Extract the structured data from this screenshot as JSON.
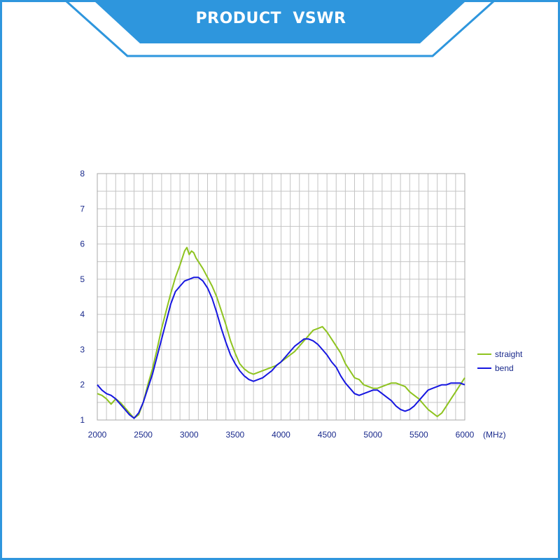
{
  "header": {
    "title": "PRODUCT  VSWR"
  },
  "colors": {
    "frame": "#2e96dd",
    "banner": "#2e96dd",
    "grid": "#c4c4c4",
    "tick_text": "#1a2a8c",
    "straight": "#8ec31f",
    "bend": "#1616e0"
  },
  "chart_data": {
    "type": "line",
    "title": "",
    "xlabel": "",
    "ylabel": "",
    "x_unit": "(MHz)",
    "xlim": [
      2000,
      6000
    ],
    "ylim": [
      1,
      8
    ],
    "x_ticks": [
      2000,
      2500,
      3000,
      3500,
      4000,
      4500,
      5000,
      5500,
      6000
    ],
    "y_ticks": [
      1,
      2,
      3,
      4,
      5,
      6,
      7,
      8
    ],
    "grid": true,
    "legend": "right",
    "series": [
      {
        "name": "straight",
        "color": "#8ec31f",
        "x": [
          2000,
          2050,
          2100,
          2150,
          2200,
          2250,
          2300,
          2350,
          2400,
          2450,
          2500,
          2550,
          2600,
          2650,
          2700,
          2750,
          2800,
          2850,
          2900,
          2950,
          2975,
          3000,
          3025,
          3050,
          3075,
          3100,
          3150,
          3200,
          3250,
          3300,
          3350,
          3400,
          3450,
          3500,
          3550,
          3600,
          3650,
          3700,
          3750,
          3800,
          3850,
          3900,
          3950,
          4000,
          4050,
          4100,
          4150,
          4200,
          4250,
          4300,
          4350,
          4400,
          4450,
          4500,
          4550,
          4600,
          4650,
          4700,
          4750,
          4800,
          4850,
          4900,
          4950,
          5000,
          5050,
          5100,
          5150,
          5200,
          5250,
          5300,
          5350,
          5400,
          5450,
          5500,
          5550,
          5600,
          5650,
          5700,
          5750,
          5800,
          5850,
          5900,
          5950,
          6000
        ],
        "values": [
          1.75,
          1.7,
          1.6,
          1.45,
          1.6,
          1.5,
          1.35,
          1.2,
          1.05,
          1.15,
          1.5,
          2.0,
          2.45,
          3.0,
          3.6,
          4.1,
          4.6,
          5.05,
          5.4,
          5.8,
          5.9,
          5.7,
          5.8,
          5.75,
          5.6,
          5.5,
          5.3,
          5.05,
          4.8,
          4.5,
          4.1,
          3.7,
          3.25,
          2.9,
          2.6,
          2.45,
          2.35,
          2.3,
          2.35,
          2.4,
          2.45,
          2.5,
          2.55,
          2.65,
          2.75,
          2.85,
          2.95,
          3.1,
          3.25,
          3.4,
          3.55,
          3.6,
          3.65,
          3.5,
          3.3,
          3.1,
          2.9,
          2.6,
          2.4,
          2.2,
          2.15,
          2.0,
          1.95,
          1.9,
          1.9,
          1.95,
          2.0,
          2.05,
          2.05,
          2.0,
          1.95,
          1.8,
          1.7,
          1.6,
          1.45,
          1.3,
          1.2,
          1.1,
          1.2,
          1.4,
          1.6,
          1.8,
          2.0,
          2.2
        ]
      },
      {
        "name": "bend",
        "color": "#1616e0",
        "x": [
          2000,
          2050,
          2100,
          2150,
          2200,
          2250,
          2300,
          2350,
          2400,
          2450,
          2500,
          2550,
          2600,
          2650,
          2700,
          2750,
          2800,
          2850,
          2900,
          2950,
          3000,
          3050,
          3100,
          3150,
          3200,
          3250,
          3300,
          3350,
          3400,
          3450,
          3500,
          3550,
          3600,
          3650,
          3700,
          3750,
          3800,
          3850,
          3900,
          3950,
          4000,
          4050,
          4100,
          4150,
          4200,
          4250,
          4300,
          4350,
          4400,
          4450,
          4500,
          4550,
          4600,
          4650,
          4700,
          4750,
          4800,
          4850,
          4900,
          4950,
          5000,
          5050,
          5100,
          5150,
          5200,
          5250,
          5300,
          5350,
          5400,
          5450,
          5500,
          5550,
          5600,
          5650,
          5700,
          5750,
          5800,
          5850,
          5900,
          5950,
          6000
        ],
        "values": [
          2.0,
          1.85,
          1.75,
          1.7,
          1.6,
          1.45,
          1.3,
          1.15,
          1.05,
          1.2,
          1.5,
          1.9,
          2.3,
          2.8,
          3.3,
          3.8,
          4.3,
          4.65,
          4.8,
          4.95,
          5.0,
          5.05,
          5.05,
          4.95,
          4.75,
          4.45,
          4.05,
          3.6,
          3.2,
          2.85,
          2.6,
          2.4,
          2.25,
          2.15,
          2.1,
          2.15,
          2.2,
          2.3,
          2.4,
          2.55,
          2.65,
          2.8,
          2.95,
          3.1,
          3.2,
          3.3,
          3.3,
          3.25,
          3.15,
          3.0,
          2.85,
          2.65,
          2.5,
          2.25,
          2.05,
          1.9,
          1.75,
          1.7,
          1.75,
          1.8,
          1.85,
          1.85,
          1.75,
          1.65,
          1.55,
          1.4,
          1.3,
          1.25,
          1.3,
          1.4,
          1.55,
          1.7,
          1.85,
          1.9,
          1.95,
          2.0,
          2.0,
          2.05,
          2.05,
          2.05,
          2.0
        ]
      }
    ]
  }
}
